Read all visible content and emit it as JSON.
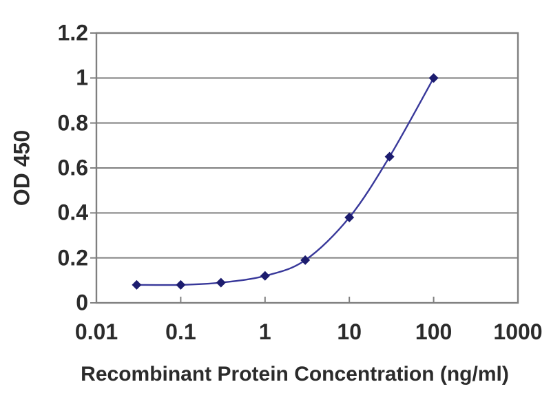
{
  "chart_data": {
    "type": "line",
    "title": "",
    "xlabel": "Recombinant Protein Concentration (ng/ml)",
    "ylabel": "OD 450",
    "x_scale": "log",
    "xlim": [
      0.01,
      1000
    ],
    "ylim": [
      0,
      1.2
    ],
    "x": [
      0.03,
      0.1,
      0.3,
      1,
      3,
      10,
      30,
      100
    ],
    "values": [
      0.08,
      0.08,
      0.09,
      0.12,
      0.19,
      0.38,
      0.65,
      1.0
    ],
    "x_ticks": [
      0.01,
      0.1,
      1,
      10,
      100,
      1000
    ],
    "x_tick_labels": [
      "0.01",
      "0.1",
      "1",
      "10",
      "100",
      "1000"
    ],
    "y_ticks": [
      0,
      0.2,
      0.4,
      0.6,
      0.8,
      1,
      1.2
    ],
    "y_tick_labels": [
      "0",
      "0.2",
      "0.4",
      "0.6",
      "0.8",
      "1",
      "1.2"
    ],
    "grid": "horizontal",
    "legend": "none",
    "marker": "diamond",
    "line_color": "#38389a",
    "marker_color": "#1c1c6e",
    "gridline_color": "#7f7f7f",
    "axis_color": "#7f7f7f",
    "text_color": "#2b2b2b",
    "background": "#ffffff"
  }
}
